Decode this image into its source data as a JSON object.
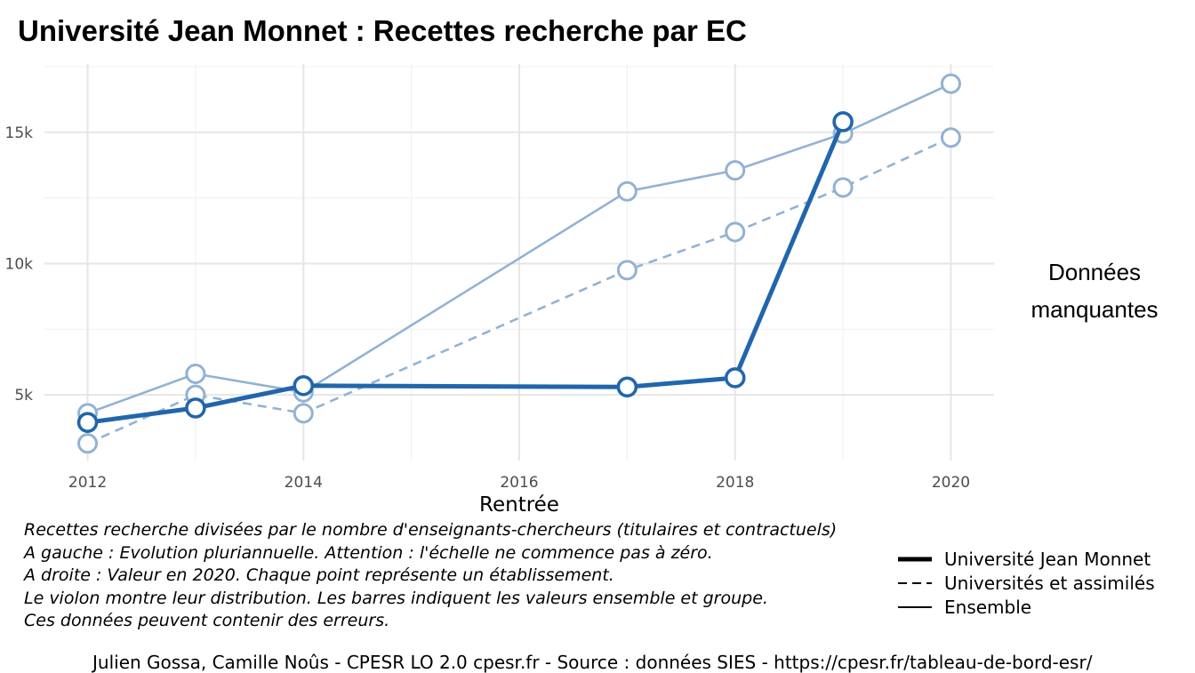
{
  "title": "Université Jean Monnet  :  Recettes recherche par EC",
  "chart_data": {
    "type": "line",
    "xlabel": "Rentrée",
    "ylabel": "",
    "xlim": [
      2011.6,
      2020.4
    ],
    "ylim": [
      2500,
      17600
    ],
    "x_ticks": [
      2012,
      2014,
      2016,
      2018,
      2020
    ],
    "x_tick_labels": [
      "2012",
      "2014",
      "2016",
      "2018",
      "2020"
    ],
    "y_ticks": [
      5000,
      10000,
      15000
    ],
    "y_tick_labels": [
      "5k",
      "10k",
      "15k"
    ],
    "grid": true,
    "legend": "bottom-right",
    "series": [
      {
        "name": "Ensemble",
        "style": "thin-solid",
        "color": "#92b2d4",
        "points": [
          [
            2012,
            4300
          ],
          [
            2013,
            5800
          ],
          [
            2014,
            5100
          ],
          [
            2017,
            12750
          ],
          [
            2018,
            13550
          ],
          [
            2019,
            14950
          ],
          [
            2020,
            16850
          ]
        ]
      },
      {
        "name": "Universités et assimilés",
        "style": "dashed",
        "color": "#92b2d4",
        "points": [
          [
            2012,
            3150
          ],
          [
            2013,
            5000
          ],
          [
            2014,
            4300
          ],
          [
            2017,
            9750
          ],
          [
            2018,
            11200
          ],
          [
            2019,
            12900
          ],
          [
            2020,
            14800
          ]
        ]
      },
      {
        "name": "Université Jean Monnet",
        "style": "thick-solid",
        "color": "#2166ac",
        "points": [
          [
            2012,
            3950
          ],
          [
            2013,
            4500
          ],
          [
            2014,
            5350
          ],
          [
            2017,
            5300
          ],
          [
            2018,
            5650
          ],
          [
            2019,
            15400
          ]
        ]
      }
    ]
  },
  "missing_note_line1": "Données",
  "missing_note_line2": "manquantes",
  "caption": [
    "Recettes recherche divisées par le nombre d'enseignants-chercheurs (titulaires et contractuels)",
    "A gauche : Evolution pluriannuelle. Attention : l'échelle ne commence pas à zéro.",
    "A droite : Valeur en 2020. Chaque point représente un établissement.",
    "Le violon montre leur distribution. Les barres indiquent les valeurs ensemble et groupe.",
    "Ces données peuvent contenir des erreurs."
  ],
  "legend_items": [
    {
      "label": "Université Jean Monnet",
      "style": "thick"
    },
    {
      "label": "Universités et assimilés",
      "style": "dashed"
    },
    {
      "label": "Ensemble",
      "style": "thin"
    }
  ],
  "credits": "Julien Gossa, Camille Noûs - CPESR LO 2.0 cpesr.fr - Source : données SIES - https://cpesr.fr/tableau-de-bord-esr/"
}
